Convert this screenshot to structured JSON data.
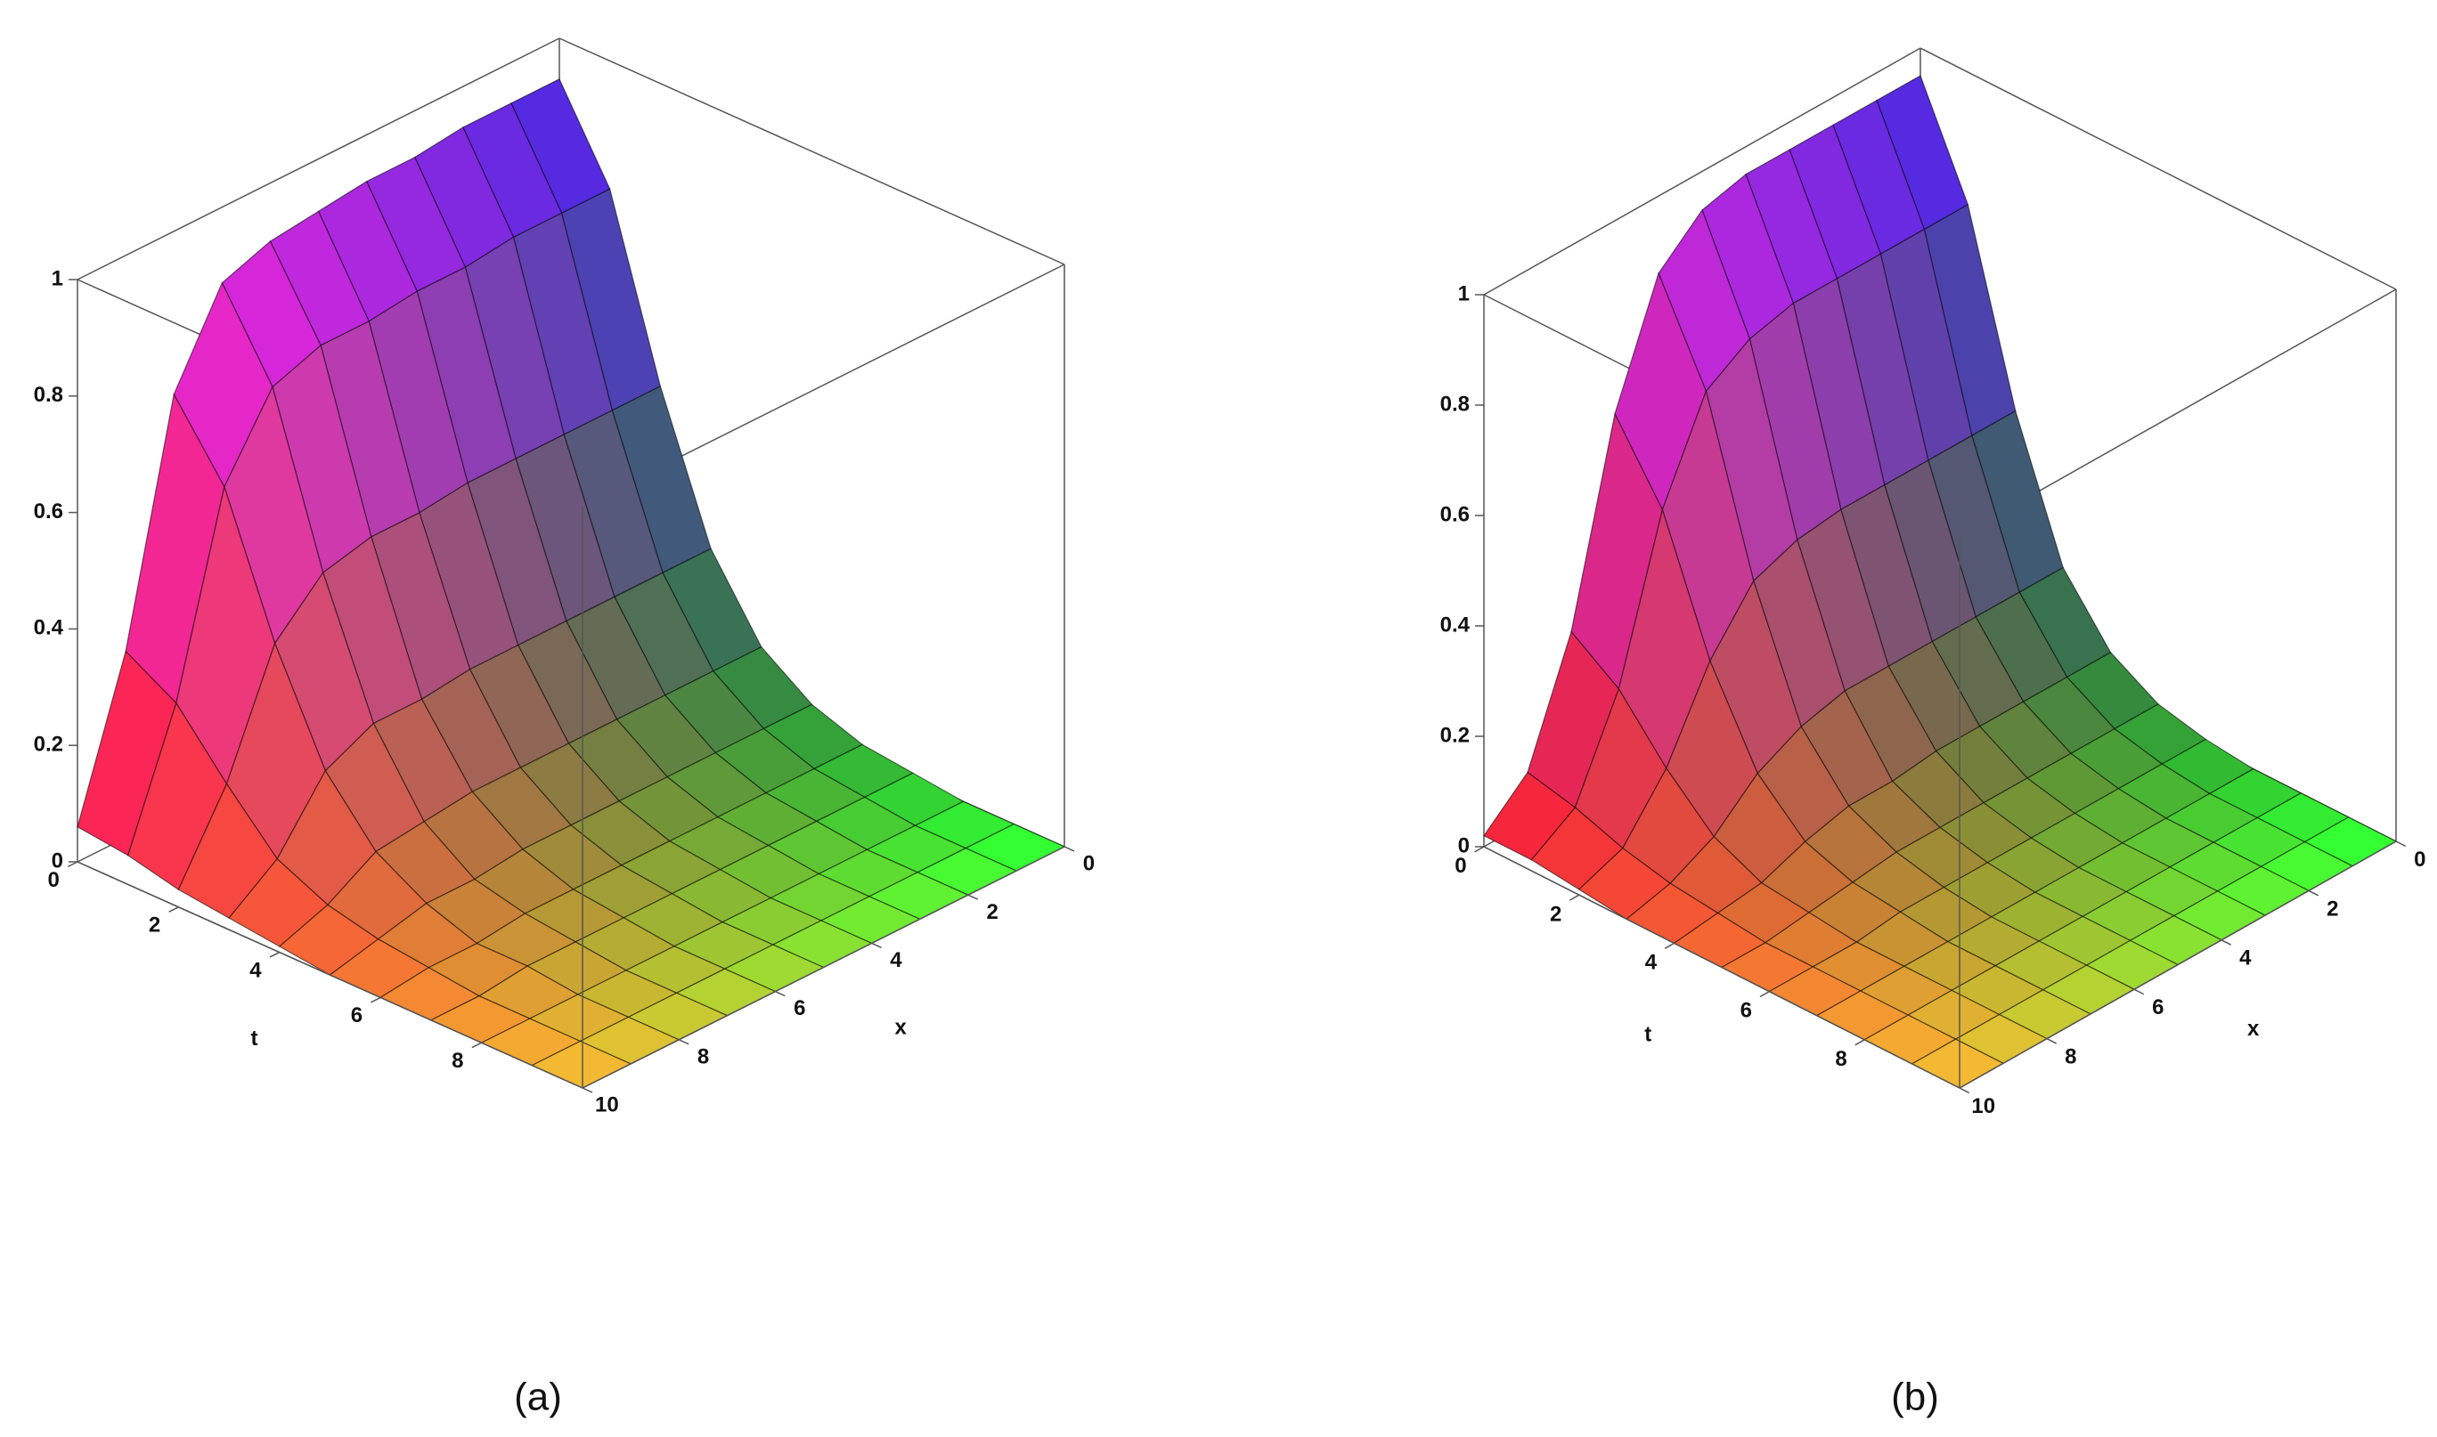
{
  "chart_data": [
    {
      "type": "surface",
      "caption": "(a)",
      "tlabel": "t",
      "xlabel": "x",
      "shading": "xyz",
      "t": [
        0,
        1,
        2,
        3,
        4,
        5,
        6,
        7,
        8,
        9,
        10
      ],
      "x": [
        0,
        1,
        2,
        3,
        4,
        5,
        6,
        7,
        8,
        9,
        10
      ],
      "tlim": [
        0,
        10
      ],
      "xlim": [
        0,
        10
      ],
      "zlim": [
        0,
        1
      ],
      "tticks": [
        0,
        2,
        4,
        6,
        8
      ],
      "xticks": [
        0,
        2,
        4,
        6,
        8,
        10
      ],
      "zticks": [
        0,
        0.2,
        0.4,
        0.6,
        0.8,
        1
      ],
      "z": [
        [
          0.93,
          0.93,
          0.93,
          0.92,
          0.92,
          0.91,
          0.9,
          0.87,
          0.72,
          0.32,
          0.06
        ],
        [
          0.78,
          0.78,
          0.78,
          0.77,
          0.77,
          0.76,
          0.76,
          0.73,
          0.6,
          0.27,
          0.05
        ],
        [
          0.48,
          0.48,
          0.48,
          0.48,
          0.48,
          0.47,
          0.47,
          0.45,
          0.37,
          0.17,
          0.03
        ],
        [
          0.24,
          0.24,
          0.24,
          0.24,
          0.24,
          0.24,
          0.23,
          0.23,
          0.19,
          0.08,
          0.02
        ],
        [
          0.11,
          0.11,
          0.11,
          0.11,
          0.11,
          0.11,
          0.11,
          0.1,
          0.09,
          0.04,
          0.01
        ],
        [
          0.05,
          0.05,
          0.05,
          0.05,
          0.05,
          0.05,
          0.05,
          0.04,
          0.04,
          0.02,
          0
        ],
        [
          0.02,
          0.02,
          0.02,
          0.02,
          0.02,
          0.02,
          0.02,
          0.02,
          0.01,
          0.01,
          0
        ],
        [
          0.01,
          0.01,
          0.01,
          0.01,
          0.01,
          0.01,
          0.01,
          0.01,
          0.01,
          0,
          0
        ],
        [
          0,
          0,
          0,
          0,
          0,
          0,
          0,
          0,
          0,
          0,
          0
        ],
        [
          0,
          0,
          0,
          0,
          0,
          0,
          0,
          0,
          0,
          0,
          0
        ],
        [
          0,
          0,
          0,
          0,
          0,
          0,
          0,
          0,
          0,
          0,
          0
        ]
      ]
    },
    {
      "type": "surface",
      "caption": "(b)",
      "tlabel": "t",
      "xlabel": "x",
      "shading": "xyz",
      "t": [
        0,
        1,
        2,
        3,
        4,
        5,
        6,
        7,
        8,
        9,
        10
      ],
      "x": [
        0,
        1,
        2,
        3,
        4,
        5,
        6,
        7,
        8,
        9,
        10
      ],
      "tlim": [
        0,
        10
      ],
      "xlim": [
        0,
        10
      ],
      "zlim": [
        0,
        1
      ],
      "tticks": [
        0,
        2,
        4,
        6,
        8
      ],
      "xticks": [
        0,
        2,
        4,
        6,
        8,
        10
      ],
      "zticks": [
        0,
        0.2,
        0.4,
        0.6,
        0.8,
        1
      ],
      "z": [
        [
          0.95,
          0.95,
          0.95,
          0.95,
          0.95,
          0.93,
          0.86,
          0.65,
          0.3,
          0.09,
          0.02
        ],
        [
          0.76,
          0.76,
          0.76,
          0.76,
          0.76,
          0.74,
          0.69,
          0.52,
          0.24,
          0.07,
          0.02
        ],
        [
          0.43,
          0.43,
          0.43,
          0.43,
          0.43,
          0.42,
          0.39,
          0.29,
          0.14,
          0.04,
          0.01
        ],
        [
          0.19,
          0.19,
          0.19,
          0.19,
          0.19,
          0.19,
          0.17,
          0.13,
          0.06,
          0.02,
          0
        ],
        [
          0.08,
          0.08,
          0.08,
          0.08,
          0.08,
          0.07,
          0.07,
          0.05,
          0.02,
          0.01,
          0
        ],
        [
          0.03,
          0.03,
          0.03,
          0.03,
          0.03,
          0.03,
          0.03,
          0.02,
          0.01,
          0,
          0
        ],
        [
          0.01,
          0.01,
          0.01,
          0.01,
          0.01,
          0.01,
          0.01,
          0.01,
          0,
          0,
          0
        ],
        [
          0,
          0,
          0,
          0,
          0,
          0,
          0,
          0,
          0,
          0,
          0
        ],
        [
          0,
          0,
          0,
          0,
          0,
          0,
          0,
          0,
          0,
          0,
          0
        ],
        [
          0,
          0,
          0,
          0,
          0,
          0,
          0,
          0,
          0,
          0,
          0
        ],
        [
          0,
          0,
          0,
          0,
          0,
          0,
          0,
          0,
          0,
          0,
          0
        ]
      ]
    }
  ]
}
